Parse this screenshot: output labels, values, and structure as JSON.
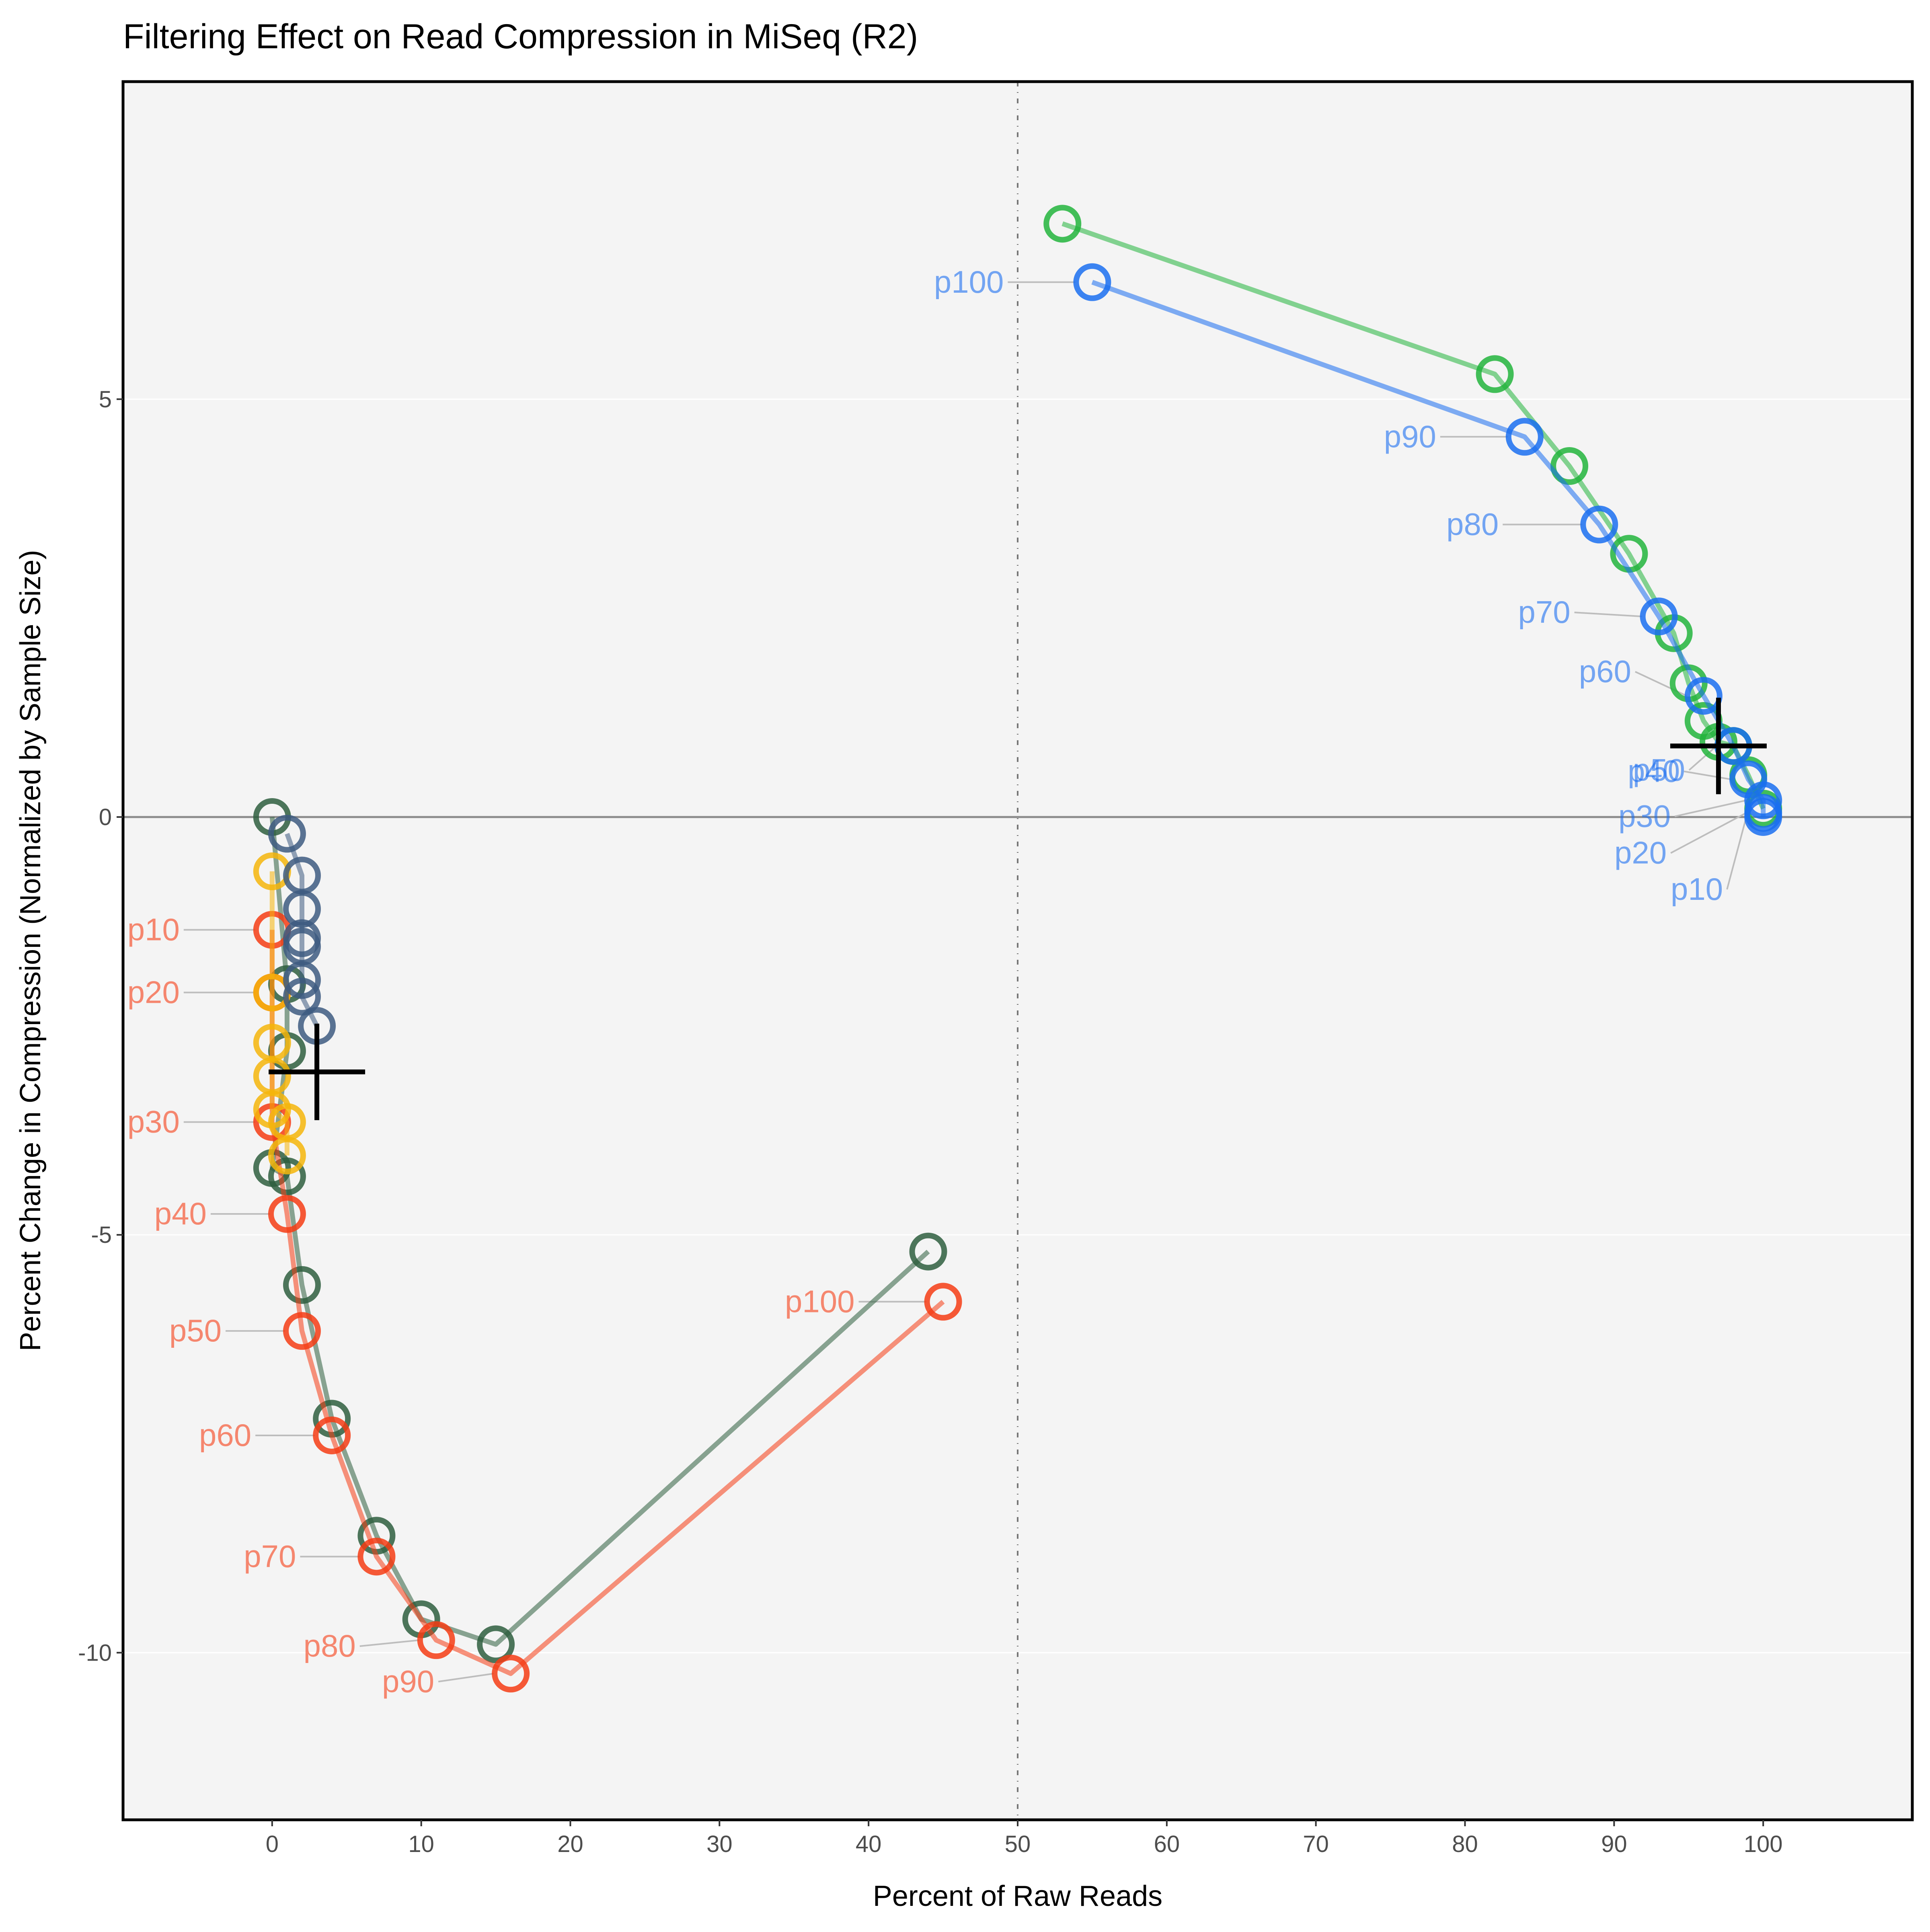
{
  "chart_data": {
    "type": "line",
    "title": "Filtering Effect on Read Compression in MiSeq (R2)",
    "xlabel": "Percent of Raw Reads",
    "ylabel": "Percent Change in Compression (Normalized by Sample Size)",
    "xlim": [
      -10,
      110
    ],
    "ylim": [
      -12,
      8.8
    ],
    "xticks": [
      0,
      10,
      20,
      30,
      40,
      50,
      60,
      70,
      80,
      90,
      100
    ],
    "xtick_labels": [
      "0",
      "10",
      "20",
      "30",
      "40",
      "50",
      "60",
      "70",
      "80",
      "90",
      "100"
    ],
    "yticks": [
      -10,
      -5,
      0,
      5
    ],
    "ytick_labels": [
      "-10",
      "-5",
      "0",
      "5"
    ],
    "grid": true,
    "reference_lines": {
      "y": 0,
      "x": 50
    },
    "series": [
      {
        "color": "#2e5e3e",
        "x": [
          0,
          1,
          1,
          0,
          1,
          2,
          4,
          7,
          10,
          15,
          44
        ],
        "y": [
          0,
          -2,
          -2.8,
          -4.2,
          -4.3,
          -5.6,
          -7.2,
          -8.6,
          -9.6,
          -9.9,
          -5.2
        ]
      },
      {
        "color": "#f53c14",
        "x": [
          0,
          0,
          0,
          1,
          2,
          4,
          7,
          11,
          16,
          45
        ],
        "y": [
          -1.35,
          -2.1,
          -3.65,
          -4.75,
          -6.15,
          -7.4,
          -8.85,
          -9.85,
          -10.25,
          -5.8
        ],
        "labels": [
          "p10",
          "p20",
          "p30",
          "p40",
          "p50",
          "p60",
          "p70",
          "p80",
          "p90",
          "p100"
        ]
      },
      {
        "color": "#f5b50a",
        "x": [
          0,
          0,
          0,
          0,
          0,
          1,
          1
        ],
        "y": [
          -0.65,
          -2.1,
          -2.7,
          -3.1,
          -3.5,
          -3.65,
          -4.05
        ]
      },
      {
        "color": "#3d5a80",
        "x": [
          1,
          2,
          2,
          2,
          2,
          2,
          2,
          3
        ],
        "y": [
          -0.2,
          -0.7,
          -1.1,
          -1.45,
          -1.55,
          -1.95,
          -2.15,
          -2.5
        ]
      },
      {
        "color": "#22b43c",
        "x": [
          53,
          82,
          87,
          91,
          94,
          95,
          96,
          97,
          98,
          99,
          100
        ],
        "y": [
          7.1,
          5.3,
          4.2,
          3.15,
          2.2,
          1.6,
          1.15,
          0.9,
          0.85,
          0.5,
          0.1
        ]
      },
      {
        "color": "#1a6ef0",
        "x": [
          55,
          84,
          89,
          93,
          96,
          98,
          99,
          100,
          100,
          100
        ],
        "y": [
          6.4,
          4.55,
          3.5,
          2.4,
          1.45,
          0.85,
          0.45,
          0.2,
          0.05,
          0.0
        ],
        "labels": [
          "p100",
          "p90",
          "p80",
          "p70",
          "p60",
          "p50",
          "p40",
          "p30",
          "p20",
          "p10"
        ]
      }
    ],
    "centroids": [
      {
        "x": 3,
        "y": -3.05
      },
      {
        "x": 97,
        "y": 0.85
      }
    ]
  }
}
